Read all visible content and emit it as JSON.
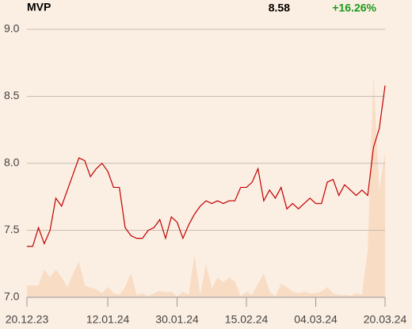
{
  "chart_data": {
    "type": "line",
    "title": "MVP",
    "last_value": "8.58",
    "change": "+16.26%",
    "series": [
      {
        "color": "#c00000",
        "values": [
          7.38,
          7.38,
          7.52,
          7.4,
          7.5,
          7.74,
          7.68,
          7.8,
          7.92,
          8.04,
          8.02,
          7.9,
          7.96,
          8.0,
          7.94,
          7.82,
          7.82,
          7.52,
          7.46,
          7.44,
          7.44,
          7.5,
          7.52,
          7.58,
          7.44,
          7.6,
          7.56,
          7.44,
          7.54,
          7.62,
          7.68,
          7.72,
          7.7,
          7.72,
          7.7,
          7.72,
          7.72,
          7.82,
          7.82,
          7.86,
          7.96,
          7.72,
          7.8,
          7.74,
          7.82,
          7.66,
          7.7,
          7.66,
          7.7,
          7.74,
          7.7,
          7.7,
          7.86,
          7.88,
          7.76,
          7.84,
          7.8,
          7.76,
          7.8,
          7.76,
          8.12,
          8.26,
          8.58
        ]
      },
      {
        "color": "#f8dcc4",
        "axis": "y2",
        "values": [
          4.4,
          4.4,
          4.4,
          10.4,
          7.4,
          10.4,
          7.4,
          3.8,
          8.9,
          13.3,
          4.4,
          3.6,
          3,
          1.5,
          3.8,
          1.5,
          0.9,
          3.8,
          8.9,
          0.9,
          1.5,
          0.3,
          1.5,
          2.4,
          1.8,
          2.1,
          0.3,
          2.1,
          0.9,
          15.7,
          0.9,
          12.4,
          3.3,
          7.4,
          5.6,
          7.4,
          5.9,
          0.3,
          2.1,
          0.9,
          5,
          8.9,
          2.1,
          0.3,
          5,
          3.8,
          2.1,
          1.5,
          2.1,
          1.5,
          1.5,
          2.1,
          3.8,
          1.5,
          0.9,
          0.9,
          0.6,
          1.5,
          0.9,
          17.5,
          82.5,
          40,
          54.1
        ]
      }
    ],
    "xlim": [
      0,
      62
    ],
    "xticks": [
      {
        "value": 0,
        "label": "20.12.23"
      },
      {
        "value": 14,
        "label": "12.01.24"
      },
      {
        "value": 26,
        "label": "30.01.24"
      },
      {
        "value": 38,
        "label": "15.02.24"
      },
      {
        "value": 50,
        "label": "04.03.24"
      },
      {
        "value": 62,
        "label": "20.03.24"
      }
    ],
    "ylim": [
      7.0,
      9.0
    ],
    "yticks": [
      {
        "value": 7.0,
        "label": "7.0"
      },
      {
        "value": 7.5,
        "label": "7.5"
      },
      {
        "value": 8.0,
        "label": "8.0"
      },
      {
        "value": 8.5,
        "label": "8.5"
      },
      {
        "value": 9.0,
        "label": "9.0"
      }
    ],
    "y2lim": [
      0,
      100
    ],
    "grid": true
  }
}
